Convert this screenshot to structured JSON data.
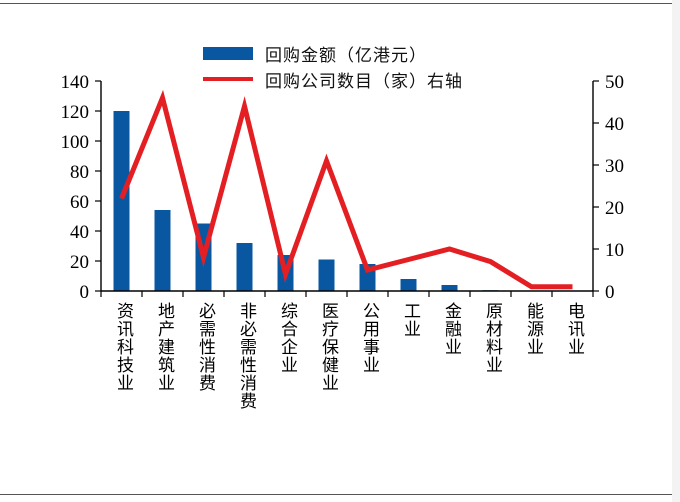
{
  "chart_data": {
    "type": "bar",
    "categories": [
      "资讯科技业",
      "地产建筑业",
      "必需性消费",
      "非必需性消费",
      "综合企业",
      "医疗保健业",
      "公用事业",
      "工业",
      "金融业",
      "原材料业",
      "能源业",
      "电讯业"
    ],
    "series": [
      {
        "name": "回购金额（亿港元）",
        "type": "bar",
        "axis": "left",
        "color": "#0a57a1",
        "values": [
          120,
          54,
          45,
          32,
          24,
          21,
          18,
          8,
          4,
          0.5,
          0,
          0
        ]
      },
      {
        "name": "回购公司数目（家）右轴",
        "type": "line",
        "axis": "right",
        "color": "#e41f23",
        "values": [
          22,
          46,
          8,
          44,
          4,
          31,
          5,
          7.5,
          10,
          7,
          1,
          1
        ]
      }
    ],
    "ylim_left": [
      0,
      140
    ],
    "yticks_left": [
      "0",
      "20",
      "40",
      "60",
      "80",
      "100",
      "120",
      "140"
    ],
    "ylim_right": [
      0,
      50
    ],
    "yticks_right": [
      "0",
      "10",
      "20",
      "30",
      "40",
      "50"
    ],
    "legend_position": "top-center",
    "grid": false
  }
}
